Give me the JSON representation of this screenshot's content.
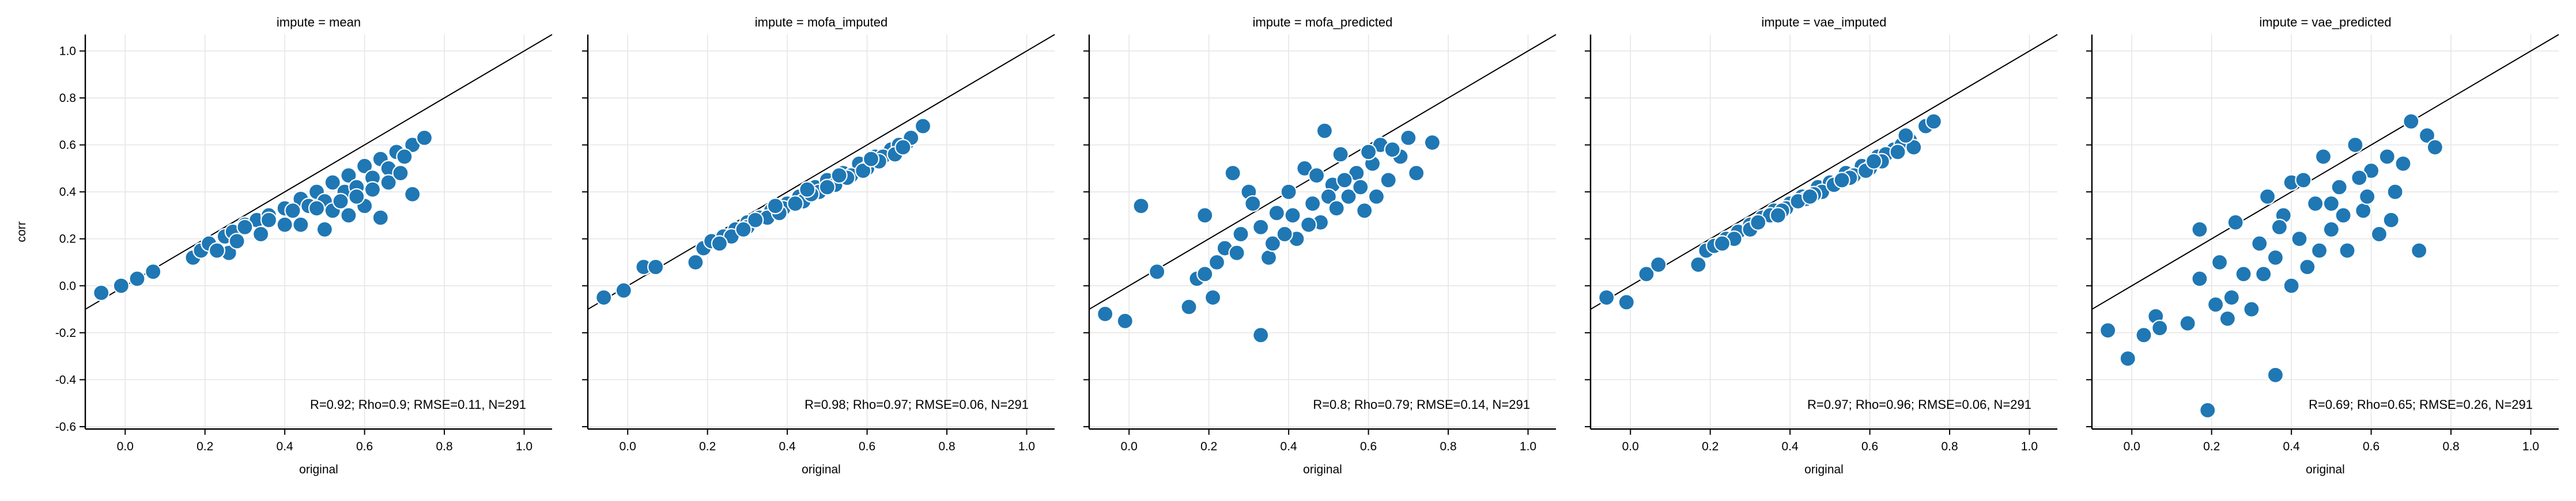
{
  "chart_data": [
    {
      "type": "scatter",
      "title": "impute = mean",
      "xlabel": "original",
      "ylabel": "corr",
      "xlim": [
        -0.1,
        1.07
      ],
      "ylim": [
        -0.61,
        1.07
      ],
      "xticks": [
        "0.0",
        "0.2",
        "0.4",
        "0.6",
        "0.8",
        "1.0"
      ],
      "yticks": [
        "-0.6",
        "-0.4",
        "-0.2",
        "0.0",
        "0.2",
        "0.4",
        "0.6",
        "0.8",
        "1.0"
      ],
      "grid": true,
      "reference_line": "y = x",
      "annotation": "R=0.92; Rho=0.9; RMSE=0.11, N=291",
      "marker_color": "#1f77b4",
      "n_points": 291,
      "points": [
        [
          -0.06,
          -0.03
        ],
        [
          -0.01,
          0.0
        ],
        [
          0.03,
          0.03
        ],
        [
          0.07,
          0.06
        ],
        [
          0.17,
          0.12
        ],
        [
          0.19,
          0.15
        ],
        [
          0.21,
          0.18
        ],
        [
          0.25,
          0.21
        ],
        [
          0.27,
          0.23
        ],
        [
          0.3,
          0.26
        ],
        [
          0.33,
          0.28
        ],
        [
          0.36,
          0.3
        ],
        [
          0.4,
          0.33
        ],
        [
          0.44,
          0.37
        ],
        [
          0.48,
          0.4
        ],
        [
          0.52,
          0.44
        ],
        [
          0.56,
          0.47
        ],
        [
          0.6,
          0.51
        ],
        [
          0.64,
          0.54
        ],
        [
          0.68,
          0.57
        ],
        [
          0.72,
          0.6
        ],
        [
          0.75,
          0.63
        ],
        [
          0.3,
          0.25
        ],
        [
          0.36,
          0.28
        ],
        [
          0.42,
          0.32
        ],
        [
          0.46,
          0.34
        ],
        [
          0.5,
          0.36
        ],
        [
          0.55,
          0.4
        ],
        [
          0.58,
          0.42
        ],
        [
          0.62,
          0.46
        ],
        [
          0.66,
          0.5
        ],
        [
          0.7,
          0.55
        ],
        [
          0.26,
          0.14
        ],
        [
          0.5,
          0.24
        ],
        [
          0.64,
          0.29
        ],
        [
          0.72,
          0.39
        ],
        [
          0.44,
          0.26
        ],
        [
          0.56,
          0.3
        ],
        [
          0.6,
          0.34
        ],
        [
          0.52,
          0.32
        ],
        [
          0.4,
          0.26
        ],
        [
          0.34,
          0.22
        ],
        [
          0.28,
          0.19
        ],
        [
          0.23,
          0.15
        ],
        [
          0.48,
          0.33
        ],
        [
          0.54,
          0.36
        ],
        [
          0.62,
          0.41
        ],
        [
          0.66,
          0.44
        ],
        [
          0.69,
          0.48
        ],
        [
          0.58,
          0.38
        ]
      ]
    },
    {
      "type": "scatter",
      "title": "impute = mofa_imputed",
      "xlabel": "original",
      "ylabel": "",
      "xlim": [
        -0.1,
        1.07
      ],
      "ylim": [
        -0.61,
        1.07
      ],
      "xticks": [
        "0.0",
        "0.2",
        "0.4",
        "0.6",
        "0.8",
        "1.0"
      ],
      "yticks": [
        "-0.6",
        "-0.4",
        "-0.2",
        "0.0",
        "0.2",
        "0.4",
        "0.6",
        "0.8",
        "1.0"
      ],
      "grid": true,
      "reference_line": "y = x",
      "annotation": "R=0.98; Rho=0.97; RMSE=0.06, N=291",
      "marker_color": "#1f77b4",
      "n_points": 291,
      "points": [
        [
          -0.06,
          -0.05
        ],
        [
          -0.01,
          -0.02
        ],
        [
          0.04,
          0.08
        ],
        [
          0.07,
          0.08
        ],
        [
          0.17,
          0.1
        ],
        [
          0.19,
          0.16
        ],
        [
          0.21,
          0.19
        ],
        [
          0.24,
          0.21
        ],
        [
          0.27,
          0.24
        ],
        [
          0.3,
          0.27
        ],
        [
          0.33,
          0.29
        ],
        [
          0.36,
          0.32
        ],
        [
          0.4,
          0.35
        ],
        [
          0.43,
          0.38
        ],
        [
          0.47,
          0.42
        ],
        [
          0.5,
          0.45
        ],
        [
          0.54,
          0.48
        ],
        [
          0.58,
          0.52
        ],
        [
          0.62,
          0.55
        ],
        [
          0.66,
          0.58
        ],
        [
          0.7,
          0.61
        ],
        [
          0.74,
          0.68
        ],
        [
          0.3,
          0.25
        ],
        [
          0.35,
          0.29
        ],
        [
          0.39,
          0.33
        ],
        [
          0.44,
          0.36
        ],
        [
          0.48,
          0.4
        ],
        [
          0.52,
          0.43
        ],
        [
          0.56,
          0.47
        ],
        [
          0.6,
          0.5
        ],
        [
          0.64,
          0.55
        ],
        [
          0.68,
          0.6
        ],
        [
          0.26,
          0.21
        ],
        [
          0.32,
          0.28
        ],
        [
          0.38,
          0.31
        ],
        [
          0.42,
          0.35
        ],
        [
          0.46,
          0.39
        ],
        [
          0.5,
          0.42
        ],
        [
          0.55,
          0.46
        ],
        [
          0.59,
          0.49
        ],
        [
          0.63,
          0.53
        ],
        [
          0.67,
          0.56
        ],
        [
          0.71,
          0.63
        ],
        [
          0.23,
          0.18
        ],
        [
          0.29,
          0.24
        ],
        [
          0.37,
          0.34
        ],
        [
          0.45,
          0.41
        ],
        [
          0.53,
          0.47
        ],
        [
          0.61,
          0.54
        ],
        [
          0.69,
          0.59
        ]
      ]
    },
    {
      "type": "scatter",
      "title": "impute = mofa_predicted",
      "xlabel": "original",
      "ylabel": "",
      "xlim": [
        -0.1,
        1.07
      ],
      "ylim": [
        -0.61,
        1.07
      ],
      "xticks": [
        "0.0",
        "0.2",
        "0.4",
        "0.6",
        "0.8",
        "1.0"
      ],
      "yticks": [
        "-0.6",
        "-0.4",
        "-0.2",
        "0.0",
        "0.2",
        "0.4",
        "0.6",
        "0.8",
        "1.0"
      ],
      "grid": true,
      "reference_line": "y = x",
      "annotation": "R=0.8; Rho=0.79; RMSE=0.14, N=291",
      "marker_color": "#1f77b4",
      "n_points": 291,
      "points": [
        [
          -0.06,
          -0.12
        ],
        [
          -0.01,
          -0.15
        ],
        [
          0.03,
          0.34
        ],
        [
          0.07,
          0.06
        ],
        [
          0.15,
          -0.09
        ],
        [
          0.17,
          0.03
        ],
        [
          0.19,
          0.05
        ],
        [
          0.19,
          0.3
        ],
        [
          0.21,
          -0.05
        ],
        [
          0.22,
          0.1
        ],
        [
          0.24,
          0.16
        ],
        [
          0.26,
          0.48
        ],
        [
          0.28,
          0.22
        ],
        [
          0.3,
          0.4
        ],
        [
          0.33,
          -0.21
        ],
        [
          0.33,
          0.25
        ],
        [
          0.35,
          0.12
        ],
        [
          0.37,
          0.31
        ],
        [
          0.4,
          0.4
        ],
        [
          0.42,
          0.2
        ],
        [
          0.44,
          0.5
        ],
        [
          0.46,
          0.35
        ],
        [
          0.48,
          0.27
        ],
        [
          0.49,
          0.66
        ],
        [
          0.51,
          0.43
        ],
        [
          0.53,
          0.56
        ],
        [
          0.55,
          0.38
        ],
        [
          0.57,
          0.48
        ],
        [
          0.59,
          0.32
        ],
        [
          0.61,
          0.52
        ],
        [
          0.63,
          0.6
        ],
        [
          0.65,
          0.45
        ],
        [
          0.68,
          0.55
        ],
        [
          0.7,
          0.63
        ],
        [
          0.72,
          0.48
        ],
        [
          0.76,
          0.61
        ],
        [
          0.36,
          0.18
        ],
        [
          0.41,
          0.3
        ],
        [
          0.45,
          0.26
        ],
        [
          0.5,
          0.38
        ],
        [
          0.54,
          0.45
        ],
        [
          0.58,
          0.42
        ],
        [
          0.62,
          0.38
        ],
        [
          0.66,
          0.58
        ],
        [
          0.31,
          0.35
        ],
        [
          0.27,
          0.14
        ],
        [
          0.39,
          0.22
        ],
        [
          0.47,
          0.47
        ],
        [
          0.52,
          0.33
        ],
        [
          0.6,
          0.57
        ]
      ]
    },
    {
      "type": "scatter",
      "title": "impute = vae_imputed",
      "xlabel": "original",
      "ylabel": "",
      "xlim": [
        -0.1,
        1.07
      ],
      "ylim": [
        -0.61,
        1.07
      ],
      "xticks": [
        "0.0",
        "0.2",
        "0.4",
        "0.6",
        "0.8",
        "1.0"
      ],
      "yticks": [
        "-0.6",
        "-0.4",
        "-0.2",
        "0.0",
        "0.2",
        "0.4",
        "0.6",
        "0.8",
        "1.0"
      ],
      "grid": true,
      "reference_line": "y = x",
      "annotation": "R=0.97; Rho=0.96; RMSE=0.06, N=291",
      "marker_color": "#1f77b4",
      "n_points": 291,
      "points": [
        [
          -0.06,
          -0.05
        ],
        [
          -0.01,
          -0.07
        ],
        [
          0.04,
          0.05
        ],
        [
          0.07,
          0.09
        ],
        [
          0.17,
          0.09
        ],
        [
          0.19,
          0.15
        ],
        [
          0.21,
          0.17
        ],
        [
          0.24,
          0.2
        ],
        [
          0.27,
          0.23
        ],
        [
          0.3,
          0.26
        ],
        [
          0.33,
          0.29
        ],
        [
          0.36,
          0.32
        ],
        [
          0.4,
          0.35
        ],
        [
          0.43,
          0.38
        ],
        [
          0.47,
          0.42
        ],
        [
          0.5,
          0.44
        ],
        [
          0.54,
          0.48
        ],
        [
          0.58,
          0.51
        ],
        [
          0.62,
          0.55
        ],
        [
          0.66,
          0.58
        ],
        [
          0.7,
          0.62
        ],
        [
          0.74,
          0.68
        ],
        [
          0.76,
          0.7
        ],
        [
          0.3,
          0.24
        ],
        [
          0.35,
          0.3
        ],
        [
          0.39,
          0.33
        ],
        [
          0.44,
          0.37
        ],
        [
          0.48,
          0.4
        ],
        [
          0.52,
          0.44
        ],
        [
          0.56,
          0.47
        ],
        [
          0.6,
          0.5
        ],
        [
          0.64,
          0.56
        ],
        [
          0.68,
          0.6
        ],
        [
          0.26,
          0.2
        ],
        [
          0.32,
          0.27
        ],
        [
          0.38,
          0.32
        ],
        [
          0.42,
          0.36
        ],
        [
          0.46,
          0.39
        ],
        [
          0.51,
          0.43
        ],
        [
          0.55,
          0.46
        ],
        [
          0.59,
          0.49
        ],
        [
          0.63,
          0.53
        ],
        [
          0.67,
          0.57
        ],
        [
          0.71,
          0.59
        ],
        [
          0.23,
          0.18
        ],
        [
          0.37,
          0.3
        ],
        [
          0.45,
          0.38
        ],
        [
          0.53,
          0.45
        ],
        [
          0.61,
          0.53
        ],
        [
          0.69,
          0.64
        ]
      ]
    },
    {
      "type": "scatter",
      "title": "impute = vae_predicted",
      "xlabel": "original",
      "ylabel": "",
      "xlim": [
        -0.1,
        1.07
      ],
      "ylim": [
        -0.61,
        1.07
      ],
      "xticks": [
        "0.0",
        "0.2",
        "0.4",
        "0.6",
        "0.8",
        "1.0"
      ],
      "yticks": [
        "-0.6",
        "-0.4",
        "-0.2",
        "0.0",
        "0.2",
        "0.4",
        "0.6",
        "0.8",
        "1.0"
      ],
      "grid": true,
      "reference_line": "y = x",
      "annotation": "R=0.69; Rho=0.65; RMSE=0.26, N=291",
      "marker_color": "#1f77b4",
      "n_points": 291,
      "points": [
        [
          -0.06,
          -0.19
        ],
        [
          -0.01,
          -0.31
        ],
        [
          0.03,
          -0.21
        ],
        [
          0.06,
          -0.13
        ],
        [
          0.07,
          -0.18
        ],
        [
          0.14,
          -0.16
        ],
        [
          0.17,
          0.03
        ],
        [
          0.17,
          0.24
        ],
        [
          0.19,
          -0.53
        ],
        [
          0.21,
          -0.08
        ],
        [
          0.22,
          0.1
        ],
        [
          0.24,
          -0.14
        ],
        [
          0.26,
          0.27
        ],
        [
          0.28,
          0.05
        ],
        [
          0.3,
          -0.1
        ],
        [
          0.32,
          0.18
        ],
        [
          0.34,
          0.38
        ],
        [
          0.36,
          -0.38
        ],
        [
          0.36,
          0.12
        ],
        [
          0.38,
          0.3
        ],
        [
          0.4,
          0.44
        ],
        [
          0.42,
          0.2
        ],
        [
          0.44,
          0.08
        ],
        [
          0.46,
          0.35
        ],
        [
          0.48,
          0.55
        ],
        [
          0.5,
          0.24
        ],
        [
          0.52,
          0.42
        ],
        [
          0.54,
          0.15
        ],
        [
          0.56,
          0.6
        ],
        [
          0.58,
          0.32
        ],
        [
          0.6,
          0.49
        ],
        [
          0.62,
          0.22
        ],
        [
          0.64,
          0.55
        ],
        [
          0.66,
          0.4
        ],
        [
          0.68,
          0.52
        ],
        [
          0.7,
          0.7
        ],
        [
          0.72,
          0.15
        ],
        [
          0.74,
          0.64
        ],
        [
          0.76,
          0.59
        ],
        [
          0.25,
          -0.05
        ],
        [
          0.33,
          0.05
        ],
        [
          0.4,
          0.0
        ],
        [
          0.47,
          0.15
        ],
        [
          0.53,
          0.3
        ],
        [
          0.59,
          0.38
        ],
        [
          0.65,
          0.28
        ],
        [
          0.37,
          0.25
        ],
        [
          0.43,
          0.45
        ],
        [
          0.5,
          0.35
        ],
        [
          0.57,
          0.46
        ]
      ]
    }
  ]
}
